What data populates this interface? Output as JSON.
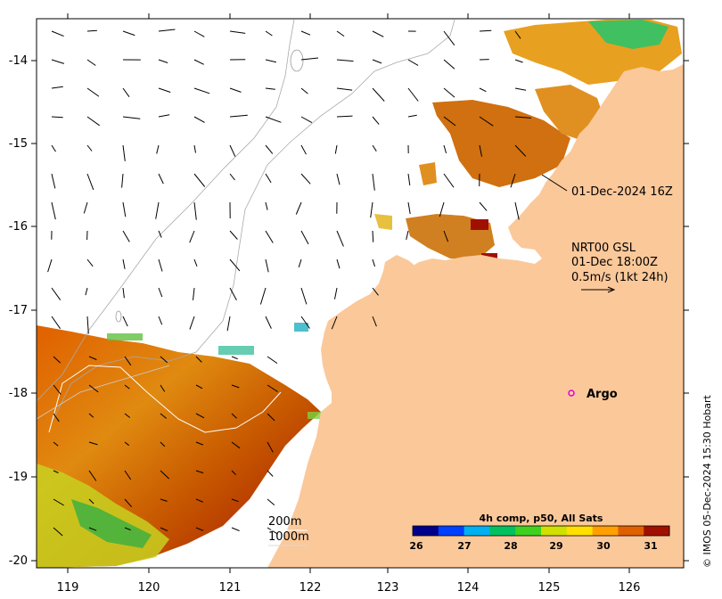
{
  "map": {
    "x_ticks": [
      "119",
      "120",
      "121",
      "122",
      "123",
      "124",
      "125",
      "126"
    ],
    "y_ticks": [
      "-14",
      "-15",
      "-16",
      "-17",
      "-18",
      "-19",
      "-20"
    ],
    "land_color": "#FBC89A",
    "annotations": {
      "pass_time": "01-Dec-2024 16Z",
      "current_product": "NRT00 GSL",
      "current_time": "01-Dec 18:00Z",
      "current_scale": "0.5m/s (1kt 24h)",
      "argo_label": "Argo",
      "contour_200": "200m",
      "contour_1000": "1000m",
      "credit": "© IMOS 05-Dec-2024 15:30 Hobart"
    },
    "colorbar": {
      "title": "4h comp, p50, All Sats",
      "ticks": [
        "26",
        "27",
        "28",
        "29",
        "30",
        "31"
      ],
      "colors": [
        "#00008B",
        "#0040FF",
        "#00B0F0",
        "#00C060",
        "#40D020",
        "#D0E000",
        "#FFE000",
        "#FFA000",
        "#E06000",
        "#A01000"
      ]
    }
  }
}
